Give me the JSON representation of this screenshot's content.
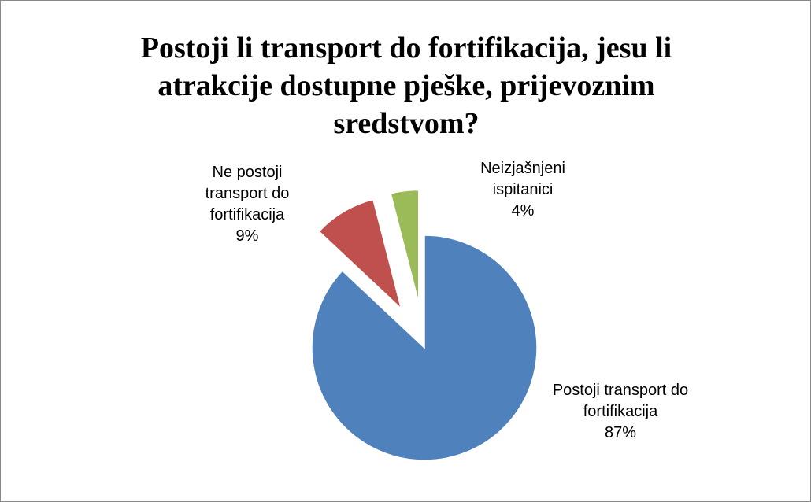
{
  "chart_data": {
    "type": "pie",
    "title": "Postoji li transport do fortifikacija, jesu li atrakcije dostupne pješke, prijevoznim sredstvom?",
    "categories": [
      "Postoji transport do fortifikacija",
      "Ne postoji transport do fortifikacija",
      "Neizjašnjeni ispitanici"
    ],
    "values": [
      87,
      9,
      4
    ],
    "value_labels": [
      "87%",
      "9%",
      "4%"
    ],
    "colors": [
      "#4f81bd",
      "#c0504d",
      "#9bbb59"
    ]
  }
}
